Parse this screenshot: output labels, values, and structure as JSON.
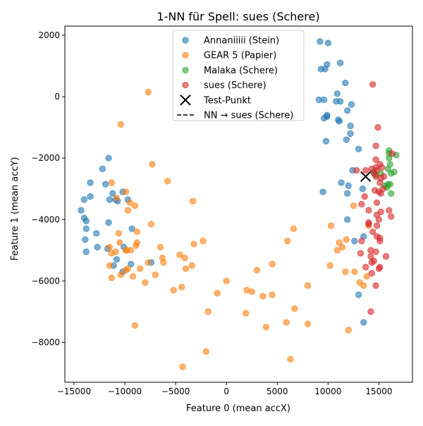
{
  "chart_data": {
    "type": "scatter",
    "title": "1-NN für Spell: sues (Schere)",
    "xlabel": "Feature 0 (mean accX)",
    "ylabel": "Feature 1 (mean accY)",
    "xlim": [
      -15900,
      18300
    ],
    "ylim": [
      -9300,
      2300
    ],
    "xticks": [
      -15000,
      -10000,
      -5000,
      0,
      5000,
      10000,
      15000
    ],
    "yticks": [
      -8000,
      -6000,
      -4000,
      -2000,
      0,
      2000
    ],
    "grid": false,
    "legend_position": "top-center",
    "series": [
      {
        "name": "Annaniiiii (Stein)",
        "color": "#1f77b4",
        "points": [
          [
            -14300,
            -3700
          ],
          [
            -14000,
            -3350
          ],
          [
            -14000,
            -3950
          ],
          [
            -13800,
            -4050
          ],
          [
            -13800,
            -4300
          ],
          [
            -13900,
            -4650
          ],
          [
            -13800,
            -5050
          ],
          [
            -13400,
            -2800
          ],
          [
            -13400,
            -3250
          ],
          [
            -12800,
            -4450
          ],
          [
            -12700,
            -4900
          ],
          [
            -12200,
            -2350
          ],
          [
            -11900,
            -2850
          ],
          [
            -11700,
            -4950
          ],
          [
            -11600,
            -4100
          ],
          [
            -11600,
            -2000
          ],
          [
            -11500,
            -3350
          ],
          [
            -11200,
            -3150
          ],
          [
            -11100,
            -5500
          ],
          [
            -10900,
            -3350
          ],
          [
            -10800,
            -5300
          ],
          [
            -10700,
            -3400
          ],
          [
            -10200,
            -3100
          ],
          [
            -10200,
            -5700
          ],
          [
            -10100,
            -4900
          ],
          [
            -9700,
            -3350
          ],
          [
            -9400,
            -5450
          ],
          [
            -9300,
            -4300
          ],
          [
            -7400,
            -5400
          ],
          [
            9200,
            1800
          ],
          [
            9300,
            900
          ],
          [
            9600,
            -100
          ],
          [
            9600,
            -700
          ],
          [
            9700,
            900
          ],
          [
            9800,
            -1450
          ],
          [
            9900,
            1050
          ],
          [
            9900,
            -650
          ],
          [
            9900,
            -600
          ],
          [
            10000,
            1750
          ],
          [
            9100,
            -100
          ],
          [
            10800,
            -150
          ],
          [
            10900,
            100
          ],
          [
            11000,
            -750
          ],
          [
            11100,
            -800
          ],
          [
            11200,
            -150
          ],
          [
            11300,
            -2800
          ],
          [
            11700,
            450
          ],
          [
            11800,
            -1400
          ],
          [
            11900,
            -450
          ],
          [
            11900,
            -3150
          ],
          [
            12000,
            -2900
          ],
          [
            12200,
            -950
          ],
          [
            12200,
            -1200
          ],
          [
            12300,
            -250
          ],
          [
            12400,
            -2400
          ],
          [
            12600,
            -4700
          ],
          [
            13000,
            -1700
          ],
          [
            13000,
            -6450
          ],
          [
            13400,
            -3000
          ],
          [
            13500,
            -7350
          ],
          [
            13500,
            -4550
          ],
          [
            11200,
            1100
          ],
          [
            9500,
            -3100
          ],
          [
            11900,
            -4000
          ]
        ]
      },
      {
        "name": "GEAR 5 (Papier)",
        "color": "#ff7f0e",
        "points": [
          [
            -11500,
            -5500
          ],
          [
            -11500,
            -4900
          ],
          [
            -11300,
            -5900
          ],
          [
            -11300,
            -5100
          ],
          [
            -11300,
            -2800
          ],
          [
            -10900,
            -5050
          ],
          [
            -10800,
            -3300
          ],
          [
            -10600,
            -4450
          ],
          [
            -10500,
            -4750
          ],
          [
            -10400,
            -5800
          ],
          [
            -10400,
            -900
          ],
          [
            -9900,
            -5650
          ],
          [
            -9900,
            -5000
          ],
          [
            -9900,
            -3100
          ],
          [
            -9800,
            -5000
          ],
          [
            -9700,
            -3700
          ],
          [
            -9700,
            -5600
          ],
          [
            -9500,
            -3450
          ],
          [
            -9400,
            -5000
          ],
          [
            -9200,
            -5850
          ],
          [
            -9000,
            -3550
          ],
          [
            -9000,
            -7450
          ],
          [
            -8900,
            -4850
          ],
          [
            -8800,
            -4400
          ],
          [
            -8800,
            -4750
          ],
          [
            -8500,
            -5600
          ],
          [
            -8000,
            -6050
          ],
          [
            -7700,
            150
          ],
          [
            -7700,
            -5400
          ],
          [
            -7400,
            -4150
          ],
          [
            -7300,
            -2200
          ],
          [
            -7000,
            -5800
          ],
          [
            -6500,
            -4900
          ],
          [
            -6300,
            -5250
          ],
          [
            -6200,
            -5400
          ],
          [
            -5800,
            -2750
          ],
          [
            -5200,
            -6300
          ],
          [
            -4600,
            -5150
          ],
          [
            -4400,
            -6200
          ],
          [
            -4100,
            -5250
          ],
          [
            -4000,
            -5600
          ],
          [
            -4300,
            -8800
          ],
          [
            -3400,
            -5500
          ],
          [
            -3300,
            -3400
          ],
          [
            -3200,
            -4800
          ],
          [
            -2300,
            -4700
          ],
          [
            -2000,
            -8300
          ],
          [
            -1800,
            -7000
          ],
          [
            -900,
            -6400
          ],
          [
            0,
            -6000
          ],
          [
            1900,
            -7050
          ],
          [
            2000,
            -6300
          ],
          [
            2500,
            -6350
          ],
          [
            3000,
            -5650
          ],
          [
            3600,
            -6500
          ],
          [
            3900,
            -7500
          ],
          [
            4500,
            -5450
          ],
          [
            4500,
            -6450
          ],
          [
            6000,
            -4700
          ],
          [
            5900,
            -7350
          ],
          [
            6300,
            -8550
          ],
          [
            6600,
            -4300
          ],
          [
            6700,
            -6900
          ],
          [
            8000,
            -6150
          ],
          [
            8000,
            -7400
          ],
          [
            10200,
            -5500
          ],
          [
            10300,
            -4200
          ],
          [
            10900,
            -5000
          ],
          [
            11100,
            -4750
          ],
          [
            11400,
            -4900
          ],
          [
            11700,
            -5700
          ],
          [
            11800,
            -4650
          ],
          [
            12000,
            -7600
          ],
          [
            12500,
            -3550
          ],
          [
            12600,
            -5700
          ],
          [
            13100,
            -6050
          ],
          [
            13500,
            -6150
          ],
          [
            13800,
            -5850
          ],
          [
            14000,
            -4200
          ]
        ]
      },
      {
        "name": "Malaka (Schere)",
        "color": "#2ca02c",
        "points": [
          [
            14500,
            -2450
          ],
          [
            14700,
            -2550
          ],
          [
            15200,
            -2500
          ],
          [
            15600,
            -2900
          ],
          [
            15800,
            -2950
          ],
          [
            15900,
            -2350
          ],
          [
            15900,
            -2850
          ],
          [
            16000,
            -1750
          ],
          [
            16000,
            -1850
          ],
          [
            16000,
            -2000
          ],
          [
            16100,
            -2200
          ],
          [
            16100,
            -2850
          ],
          [
            16200,
            -3150
          ],
          [
            16200,
            -2500
          ],
          [
            16500,
            -2450
          ],
          [
            16700,
            -1900
          ]
        ]
      },
      {
        "name": "sues (Schere)",
        "color": "#d62728",
        "points": [
          [
            12800,
            -2400
          ],
          [
            13200,
            -5100
          ],
          [
            13300,
            -3500
          ],
          [
            13300,
            -4700
          ],
          [
            13600,
            -3250
          ],
          [
            13700,
            -5550
          ],
          [
            13700,
            -2400
          ],
          [
            14000,
            -3700
          ],
          [
            14000,
            -4100
          ],
          [
            14000,
            -4150
          ],
          [
            14200,
            -5000
          ],
          [
            14200,
            -5200
          ],
          [
            14200,
            -7000
          ],
          [
            14300,
            -2350
          ],
          [
            14300,
            -5400
          ],
          [
            14300,
            -5750
          ],
          [
            14400,
            -4400
          ],
          [
            14400,
            400
          ],
          [
            14500,
            -2500
          ],
          [
            14500,
            -5350
          ],
          [
            14600,
            -3050
          ],
          [
            14700,
            -2600
          ],
          [
            14700,
            -2300
          ],
          [
            14700,
            -2050
          ],
          [
            14700,
            -1600
          ],
          [
            14700,
            -5050
          ],
          [
            14700,
            -6150
          ],
          [
            14800,
            -2400
          ],
          [
            14800,
            -3450
          ],
          [
            14800,
            -3850
          ],
          [
            14800,
            -4200
          ],
          [
            14800,
            -4550
          ],
          [
            14900,
            -1000
          ],
          [
            15000,
            -4000
          ],
          [
            15000,
            -5600
          ],
          [
            15100,
            -2200
          ],
          [
            15100,
            -4600
          ],
          [
            15100,
            -4700
          ],
          [
            15100,
            -5550
          ],
          [
            15100,
            -2800
          ],
          [
            15200,
            -2650
          ],
          [
            15200,
            -3150
          ],
          [
            15200,
            -3750
          ],
          [
            15300,
            -2300
          ],
          [
            15400,
            -3000
          ],
          [
            15500,
            -2600
          ],
          [
            15700,
            -5200
          ],
          [
            16000,
            -3700
          ],
          [
            16200,
            -3900
          ],
          [
            16300,
            -1850
          ],
          [
            15000,
            -3100
          ]
        ]
      },
      {
        "name": "Test-Punkt",
        "color": "#000000",
        "marker": "x",
        "points": [
          [
            13700,
            -2600
          ]
        ]
      },
      {
        "name": "NN → sues (Schere)",
        "color": "#000000",
        "marker": "dashed-line",
        "points": []
      }
    ]
  }
}
